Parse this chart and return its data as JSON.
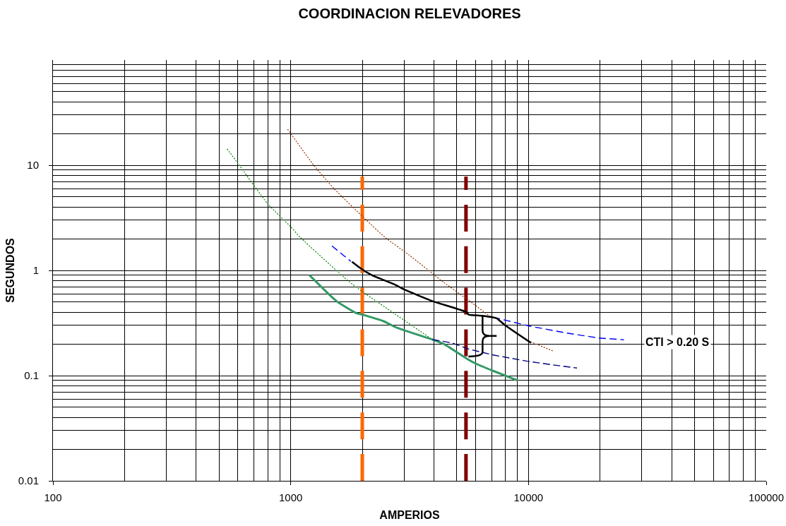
{
  "chart_data": {
    "type": "line",
    "title": "COORDINACION RELEVADORES",
    "xlabel": "AMPERIOS",
    "ylabel": "SEGUNDOS",
    "log": "xy",
    "xlim": [
      100,
      100000
    ],
    "xticks": [
      100,
      1000,
      10000,
      100000
    ],
    "ylim": [
      0.01,
      100
    ],
    "yticks": [
      0.01,
      0.1,
      1,
      10
    ],
    "grid": true,
    "marker": "none",
    "series": [
      {
        "color": "#ff6600",
        "line_style": "dashed",
        "x": [
          2000,
          2000
        ],
        "values": [
          0.01,
          7.8
        ]
      },
      {
        "color": "#800000",
        "line_style": "dashed",
        "x": [
          5460,
          5460
        ],
        "values": [
          0.01,
          7.8
        ]
      },
      {
        "color": "#008000",
        "line_style": "dotted",
        "x": [
          540,
          600,
          800,
          1000,
          1100,
          1750,
          2000,
          3950
        ],
        "values": [
          14.3,
          10.4,
          4.3,
          2.6,
          2.05,
          0.79,
          0.63,
          0.22
        ]
      },
      {
        "color": "#993300",
        "line_style": "dotted",
        "x": [
          970,
          1250,
          1520,
          2050,
          2500,
          3150,
          4400,
          5600,
          6900,
          8000,
          10200,
          12800
        ],
        "values": [
          22,
          10,
          6.0,
          3.1,
          2.05,
          1.4,
          0.77,
          0.52,
          0.365,
          null,
          0.21,
          0.17
        ]
      },
      {
        "color": "#0000ff",
        "line_style": "dashed",
        "x": [
          1490,
          1790,
          3000,
          6400,
          7450,
          10150,
          14450,
          19700,
          25200
        ],
        "values": [
          1.71,
          1.22,
          null,
          0.37,
          0.35,
          0.295,
          0.254,
          0.228,
          0.219
        ]
      },
      {
        "color": "#000000",
        "line_style": "solid",
        "x": [
          1810,
          2000,
          2200,
          2750,
          3000,
          3950,
          5500,
          5600,
          6400,
          7350,
          7600,
          8000,
          10250
        ],
        "values": [
          1.21,
          1.02,
          0.9,
          0.73,
          0.66,
          0.51,
          0.4,
          0.38,
          0.37,
          0.35,
          0.33,
          0.3,
          0.205
        ]
      },
      {
        "color": "#339966",
        "line_style": "solid",
        "x": [
          1200,
          1560,
          1900,
          2000,
          2450,
          2750,
          3150,
          3950,
          4400,
          5500,
          6000,
          7100,
          9000
        ],
        "values": [
          0.9,
          0.51,
          0.39,
          0.38,
          0.33,
          0.29,
          0.26,
          0.22,
          0.2,
          0.145,
          0.13,
          0.111,
          0.09
        ]
      },
      {
        "color": "#000080",
        "line_style": "dashed",
        "x": [
          3950,
          4750,
          5600,
          7100,
          9900,
          12500,
          16000
        ],
        "values": [
          0.22,
          0.205,
          0.179,
          0.157,
          0.137,
          0.127,
          0.118
        ]
      }
    ],
    "annotations": [
      "CTI > 0.20 S"
    ]
  }
}
